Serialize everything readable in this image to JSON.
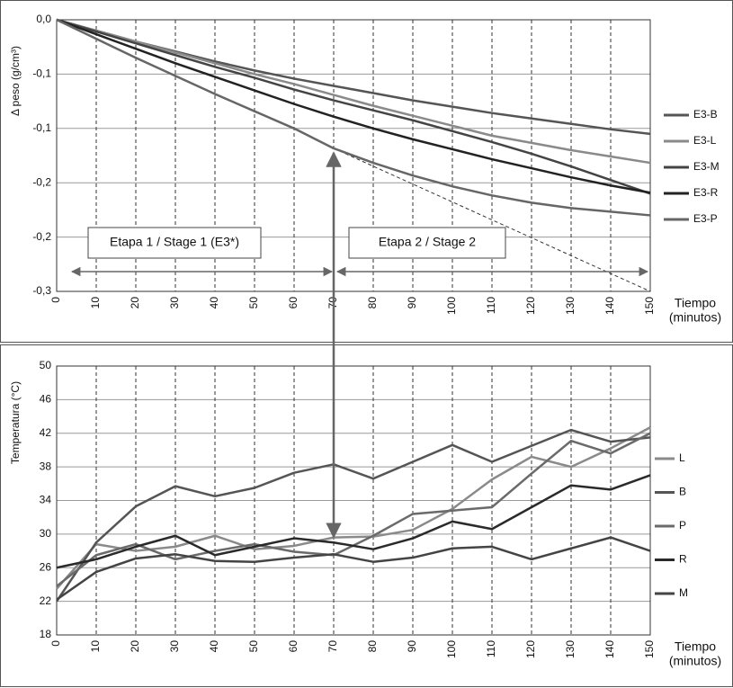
{
  "chart_data": [
    {
      "type": "line",
      "y_label": "Δ peso (g/cm³)",
      "x_label": [
        "Tiempo",
        "(minutos)"
      ],
      "x": [
        0,
        10,
        20,
        30,
        40,
        50,
        60,
        70,
        80,
        90,
        100,
        110,
        120,
        130,
        140,
        150
      ],
      "xlim": [
        0,
        150
      ],
      "xticks": [
        0,
        10,
        20,
        30,
        40,
        50,
        60,
        70,
        80,
        90,
        100,
        110,
        120,
        130,
        140,
        150
      ],
      "ylim": [
        -0.3,
        0
      ],
      "yticks": [
        {
          "value": 0,
          "label": "0,0"
        },
        {
          "value": -0.06,
          "label": "-0,1"
        },
        {
          "value": -0.12,
          "label": "-0,1"
        },
        {
          "value": -0.18,
          "label": "-0,2"
        },
        {
          "value": -0.24,
          "label": "-0,2"
        },
        {
          "value": -0.3,
          "label": "-0,3"
        }
      ],
      "grid": true,
      "series": [
        {
          "name": "E3-B",
          "color": "#555555",
          "values": [
            0,
            -0.012,
            -0.024,
            -0.035,
            -0.046,
            -0.056,
            -0.065,
            -0.073,
            -0.081,
            -0.089,
            -0.096,
            -0.103,
            -0.109,
            -0.115,
            -0.121,
            -0.126
          ]
        },
        {
          "name": "E3-L",
          "color": "#8a8a8a",
          "values": [
            0,
            -0.012,
            -0.024,
            -0.036,
            -0.048,
            -0.06,
            -0.071,
            -0.083,
            -0.095,
            -0.106,
            -0.117,
            -0.128,
            -0.136,
            -0.144,
            -0.151,
            -0.158
          ]
        },
        {
          "name": "E3-M",
          "color": "#444444",
          "values": [
            0,
            -0.013,
            -0.026,
            -0.039,
            -0.052,
            -0.064,
            -0.077,
            -0.089,
            -0.1,
            -0.111,
            -0.123,
            -0.135,
            -0.148,
            -0.162,
            -0.177,
            -0.192
          ]
        },
        {
          "name": "E3-R",
          "color": "#222222",
          "values": [
            0,
            -0.016,
            -0.032,
            -0.048,
            -0.063,
            -0.078,
            -0.093,
            -0.107,
            -0.12,
            -0.132,
            -0.143,
            -0.154,
            -0.164,
            -0.174,
            -0.183,
            -0.191
          ]
        },
        {
          "name": "E3-P",
          "color": "#666666",
          "values": [
            0,
            -0.021,
            -0.042,
            -0.062,
            -0.082,
            -0.101,
            -0.12,
            -0.142,
            -0.158,
            -0.172,
            -0.184,
            -0.194,
            -0.202,
            -0.208,
            -0.212,
            -0.216
          ]
        }
      ],
      "trend": {
        "x": [
          70,
          150
        ],
        "values": [
          -0.142,
          -0.3
        ]
      },
      "annotations": [
        "Etapa 1 / Stage 1 (E3*)",
        "Etapa 2 / Stage 2"
      ]
    },
    {
      "type": "line",
      "y_label": "Temperatura (°C)",
      "x_label": [
        "Tiempo",
        "(minutos)"
      ],
      "x": [
        0,
        10,
        20,
        30,
        40,
        50,
        60,
        70,
        80,
        90,
        100,
        110,
        120,
        130,
        140,
        150
      ],
      "xlim": [
        0,
        150
      ],
      "xticks": [
        0,
        10,
        20,
        30,
        40,
        50,
        60,
        70,
        80,
        90,
        100,
        110,
        120,
        130,
        140,
        150
      ],
      "ylim": [
        18,
        50
      ],
      "yticks": [
        18,
        22,
        26,
        30,
        34,
        38,
        42,
        46,
        50
      ],
      "grid": true,
      "series": [
        {
          "name": "L",
          "color": "#8a8a8a",
          "values": [
            23.5,
            28.8,
            28,
            28.5,
            29.8,
            28.2,
            28.6,
            29.6,
            29.7,
            30.5,
            33,
            36.5,
            39.2,
            38,
            40.2,
            42.7
          ]
        },
        {
          "name": "B",
          "color": "#555555",
          "values": [
            22,
            29,
            33.3,
            35.7,
            34.5,
            35.5,
            37.3,
            38.3,
            36.6,
            38.6,
            40.6,
            38.6,
            40.5,
            42.4,
            41,
            41.5
          ]
        },
        {
          "name": "P",
          "color": "#6a6a6a",
          "values": [
            23.8,
            27.5,
            28.8,
            27,
            28,
            28.8,
            27.9,
            27.5,
            29.8,
            32.4,
            32.8,
            33.2,
            37.2,
            41.1,
            39.6,
            42
          ]
        },
        {
          "name": "R",
          "color": "#2a2a2a",
          "values": [
            26,
            27,
            28.5,
            29.8,
            27.5,
            28.5,
            29.5,
            29,
            28.2,
            29.5,
            31.5,
            30.6,
            33.2,
            35.8,
            35.3,
            37
          ]
        },
        {
          "name": "M",
          "color": "#444444",
          "values": [
            22.2,
            25.5,
            27.1,
            27.6,
            26.8,
            26.7,
            27.2,
            27.6,
            26.7,
            27.2,
            28.3,
            28.5,
            27,
            28.3,
            29.6,
            28
          ]
        }
      ]
    }
  ]
}
